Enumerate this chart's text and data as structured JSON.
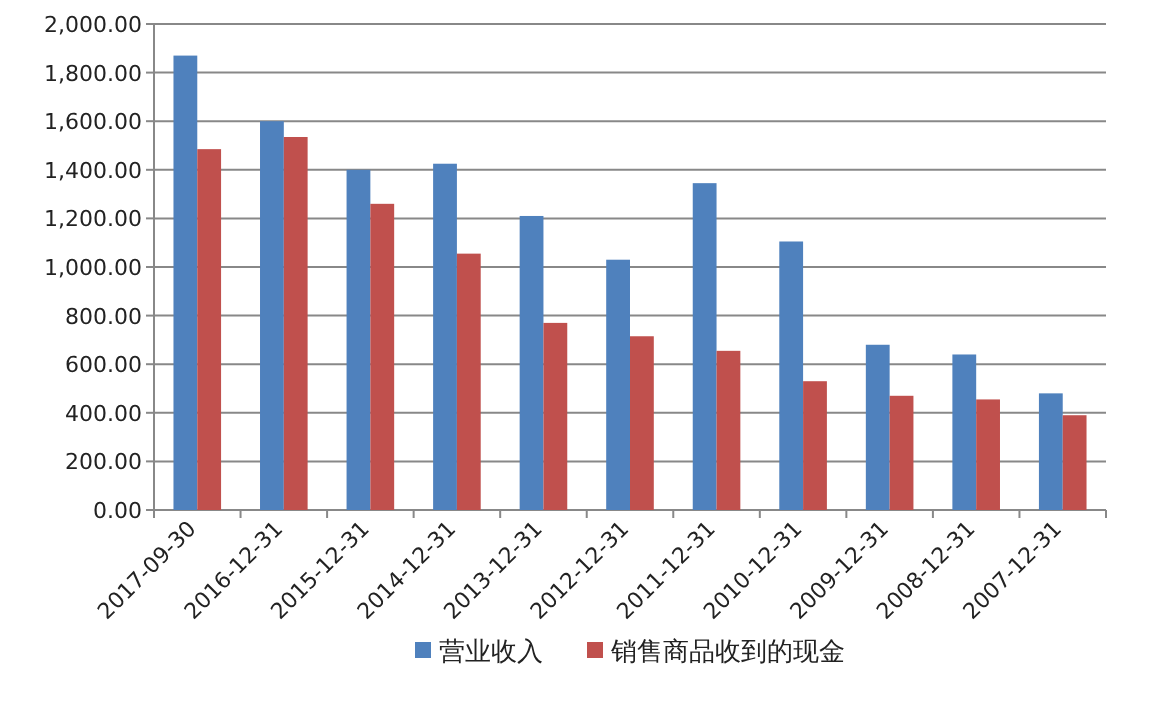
{
  "chart_data": {
    "type": "bar",
    "categories": [
      "2017-09-30",
      "2016-12-31",
      "2015-12-31",
      "2014-12-31",
      "2013-12-31",
      "2012-12-31",
      "2011-12-31",
      "2010-12-31",
      "2009-12-31",
      "2008-12-31",
      "2007-12-31"
    ],
    "series": [
      {
        "name": "营业收入",
        "color": "#4f81bd",
        "values": [
          1870,
          1600,
          1400,
          1425,
          1210,
          1030,
          1345,
          1105,
          680,
          640,
          480
        ]
      },
      {
        "name": "销售商品收到的现金",
        "color": "#c0504d",
        "values": [
          1485,
          1535,
          1260,
          1055,
          770,
          715,
          655,
          530,
          470,
          455,
          390
        ]
      }
    ],
    "ylim": [
      0,
      2000
    ],
    "yticks": [
      {
        "value": 0,
        "label": "0.00"
      },
      {
        "value": 200,
        "label": "200.00"
      },
      {
        "value": 400,
        "label": "400.00"
      },
      {
        "value": 600,
        "label": "600.00"
      },
      {
        "value": 800,
        "label": "800.00"
      },
      {
        "value": 1000,
        "label": "1,000.00"
      },
      {
        "value": 1200,
        "label": "1,200.00"
      },
      {
        "value": 1400,
        "label": "1,400.00"
      },
      {
        "value": 1600,
        "label": "1,600.00"
      },
      {
        "value": 1800,
        "label": "1,800.00"
      },
      {
        "value": 2000,
        "label": "2,000.00"
      }
    ],
    "grid": "y",
    "legend": "bottom"
  }
}
